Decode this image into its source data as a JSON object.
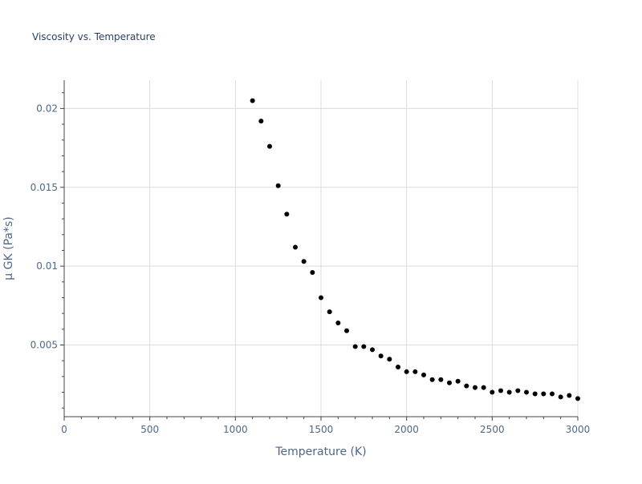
{
  "chart_data": {
    "type": "scatter",
    "title": "Viscosity vs. Temperature",
    "xlabel": "Temperature (K)",
    "ylabel": "μ GK (Pa*s)",
    "xlim": [
      0,
      3000
    ],
    "ylim": [
      0.00045,
      0.0218
    ],
    "x_ticks": [
      0,
      500,
      1000,
      1500,
      2000,
      2500,
      3000
    ],
    "x_tick_labels": [
      "0",
      "500",
      "1000",
      "1500",
      "2000",
      "2500",
      "3000"
    ],
    "y_ticks": [
      0.005,
      0.01,
      0.015,
      0.02
    ],
    "y_tick_labels": [
      "0.005",
      "0.01",
      "0.015",
      "0.02"
    ],
    "grid": true,
    "series": [
      {
        "name": "μ GK",
        "color": "#000000",
        "x": [
          1100,
          1150,
          1200,
          1250,
          1300,
          1350,
          1400,
          1450,
          1500,
          1550,
          1600,
          1650,
          1700,
          1750,
          1800,
          1850,
          1900,
          1950,
          2000,
          2050,
          2100,
          2150,
          2200,
          2250,
          2300,
          2350,
          2400,
          2450,
          2500,
          2550,
          2600,
          2650,
          2700,
          2750,
          2800,
          2850,
          2900,
          2950,
          3000
        ],
        "y": [
          0.0205,
          0.0192,
          0.0176,
          0.0151,
          0.0133,
          0.0112,
          0.0103,
          0.0096,
          0.008,
          0.0071,
          0.0064,
          0.0059,
          0.0049,
          0.0049,
          0.0047,
          0.0043,
          0.0041,
          0.0036,
          0.0033,
          0.0033,
          0.0031,
          0.0028,
          0.0028,
          0.0026,
          0.0027,
          0.0024,
          0.0023,
          0.0023,
          0.002,
          0.0021,
          0.002,
          0.0021,
          0.002,
          0.0019,
          0.0019,
          0.0019,
          0.0017,
          0.0018,
          0.0016
        ]
      }
    ]
  }
}
